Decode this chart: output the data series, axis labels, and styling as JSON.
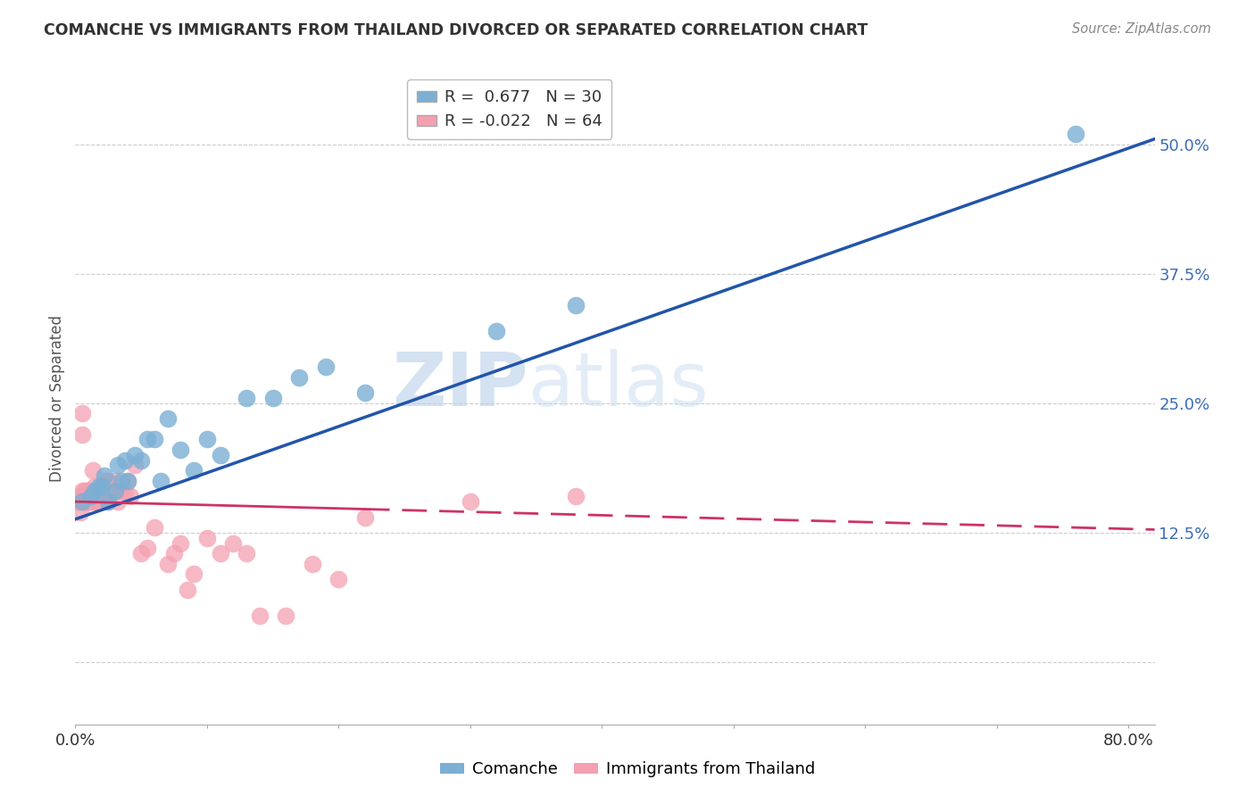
{
  "title": "COMANCHE VS IMMIGRANTS FROM THAILAND DIVORCED OR SEPARATED CORRELATION CHART",
  "source": "Source: ZipAtlas.com",
  "ylabel": "Divorced or Separated",
  "xlim": [
    0.0,
    0.82
  ],
  "ylim": [
    -0.06,
    0.57
  ],
  "yticks": [
    0.0,
    0.125,
    0.25,
    0.375,
    0.5
  ],
  "ytick_labels": [
    "",
    "12.5%",
    "25.0%",
    "37.5%",
    "50.0%"
  ],
  "xticks": [
    0.0,
    0.1,
    0.2,
    0.3,
    0.4,
    0.5,
    0.6,
    0.7,
    0.8
  ],
  "xtick_labels": [
    "0.0%",
    "",
    "",
    "",
    "",
    "",
    "",
    "",
    "80.0%"
  ],
  "comanche_color": "#7BAFD4",
  "thailand_color": "#F4A0B0",
  "line_comanche_color": "#2255AA",
  "line_thailand_color": "#CC3366",
  "watermark_zip": "ZIP",
  "watermark_atlas": "atlas",
  "comanche_x": [
    0.005,
    0.012,
    0.015,
    0.018,
    0.02,
    0.022,
    0.025,
    0.03,
    0.032,
    0.035,
    0.038,
    0.04,
    0.045,
    0.05,
    0.055,
    0.06,
    0.065,
    0.07,
    0.08,
    0.09,
    0.1,
    0.11,
    0.13,
    0.15,
    0.17,
    0.19,
    0.22,
    0.32,
    0.38,
    0.76
  ],
  "comanche_y": [
    0.155,
    0.16,
    0.165,
    0.17,
    0.17,
    0.18,
    0.155,
    0.165,
    0.19,
    0.175,
    0.195,
    0.175,
    0.2,
    0.195,
    0.215,
    0.215,
    0.175,
    0.235,
    0.205,
    0.185,
    0.215,
    0.2,
    0.255,
    0.255,
    0.275,
    0.285,
    0.26,
    0.32,
    0.345,
    0.51
  ],
  "thailand_x": [
    0.002,
    0.003,
    0.003,
    0.004,
    0.004,
    0.005,
    0.005,
    0.005,
    0.006,
    0.006,
    0.007,
    0.007,
    0.007,
    0.008,
    0.008,
    0.009,
    0.009,
    0.01,
    0.01,
    0.01,
    0.01,
    0.012,
    0.012,
    0.013,
    0.013,
    0.014,
    0.015,
    0.015,
    0.016,
    0.017,
    0.018,
    0.02,
    0.02,
    0.022,
    0.025,
    0.025,
    0.028,
    0.03,
    0.03,
    0.032,
    0.035,
    0.038,
    0.04,
    0.042,
    0.045,
    0.05,
    0.055,
    0.06,
    0.07,
    0.075,
    0.08,
    0.085,
    0.09,
    0.1,
    0.11,
    0.12,
    0.13,
    0.14,
    0.16,
    0.18,
    0.2,
    0.22,
    0.3,
    0.38
  ],
  "thailand_y": [
    0.155,
    0.155,
    0.16,
    0.145,
    0.155,
    0.22,
    0.24,
    0.165,
    0.155,
    0.155,
    0.165,
    0.155,
    0.155,
    0.155,
    0.165,
    0.155,
    0.165,
    0.155,
    0.165,
    0.155,
    0.16,
    0.165,
    0.155,
    0.185,
    0.165,
    0.155,
    0.17,
    0.155,
    0.155,
    0.155,
    0.155,
    0.155,
    0.165,
    0.175,
    0.155,
    0.175,
    0.165,
    0.175,
    0.165,
    0.155,
    0.165,
    0.165,
    0.175,
    0.16,
    0.19,
    0.105,
    0.11,
    0.13,
    0.095,
    0.105,
    0.115,
    0.07,
    0.085,
    0.12,
    0.105,
    0.115,
    0.105,
    0.045,
    0.045,
    0.095,
    0.08,
    0.14,
    0.155,
    0.16
  ],
  "comanche_line_x0": 0.0,
  "comanche_line_x1": 0.82,
  "comanche_line_y0": 0.138,
  "comanche_line_y1": 0.505,
  "thailand_line_x0": 0.0,
  "thailand_line_x1": 0.82,
  "thailand_line_y0": 0.155,
  "thailand_line_y1": 0.128
}
